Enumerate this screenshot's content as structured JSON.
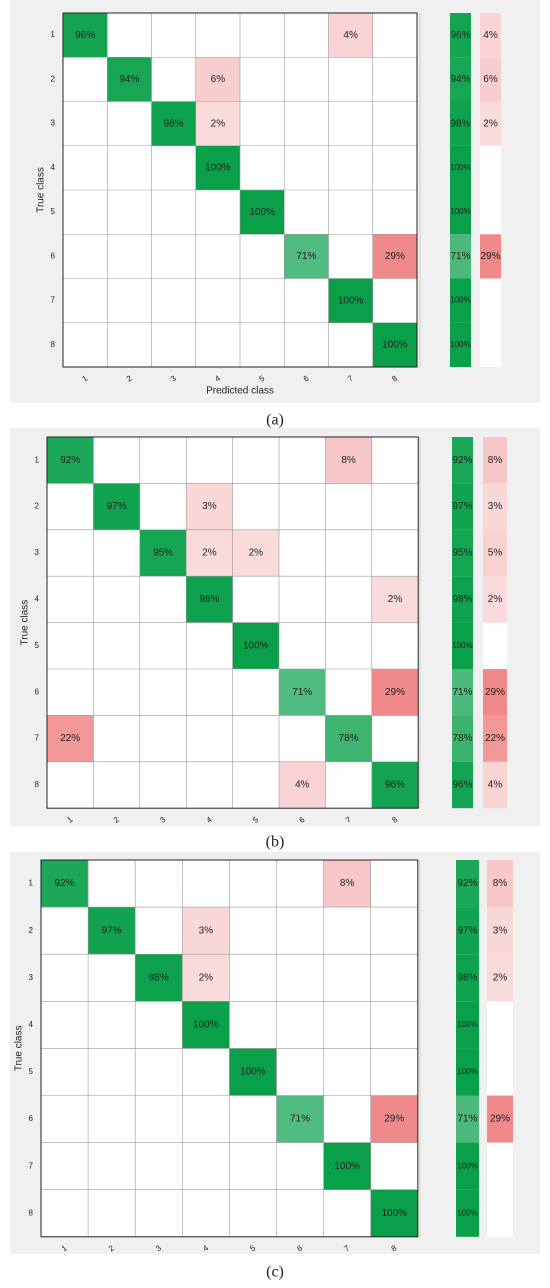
{
  "chart_data": [
    {
      "type": "heatmap",
      "caption": "(a)",
      "y_label": "True class",
      "x_label": "Predicted class",
      "classes": [
        "1",
        "2",
        "3",
        "4",
        "5",
        "6",
        "7",
        "8"
      ],
      "colors": {
        "correct": "#0aa04a",
        "error": "#f08a8a"
      },
      "values": [
        [
          96,
          null,
          null,
          null,
          null,
          null,
          4,
          null
        ],
        [
          null,
          94,
          null,
          6,
          null,
          null,
          null,
          null
        ],
        [
          null,
          null,
          98,
          2,
          null,
          null,
          null,
          null
        ],
        [
          null,
          null,
          null,
          100,
          null,
          null,
          null,
          null
        ],
        [
          null,
          null,
          null,
          null,
          100,
          null,
          null,
          null
        ],
        [
          null,
          null,
          null,
          null,
          null,
          71,
          null,
          29
        ],
        [
          null,
          null,
          null,
          null,
          null,
          null,
          100,
          null
        ],
        [
          null,
          null,
          null,
          null,
          null,
          null,
          null,
          100
        ]
      ],
      "value_labels": [
        [
          "96%",
          null,
          null,
          null,
          null,
          null,
          "4%",
          null
        ],
        [
          null,
          "94%",
          null,
          "6%",
          null,
          null,
          null,
          null
        ],
        [
          null,
          null,
          "98%",
          "2%",
          null,
          null,
          null,
          null
        ],
        [
          null,
          null,
          null,
          "100%",
          null,
          null,
          null,
          null
        ],
        [
          null,
          null,
          null,
          null,
          "100%",
          null,
          null,
          null
        ],
        [
          null,
          null,
          null,
          null,
          null,
          "71%",
          null,
          "29%"
        ],
        [
          null,
          null,
          null,
          null,
          null,
          null,
          "100%",
          null
        ],
        [
          null,
          null,
          null,
          null,
          null,
          null,
          null,
          "100%"
        ]
      ],
      "correct": [
        96,
        94,
        98,
        100,
        100,
        71,
        100,
        100
      ],
      "correct_labels": [
        "96%",
        "94%",
        "98%",
        "100%",
        "100%",
        "71%",
        "100%",
        "100%"
      ],
      "error": [
        4,
        6,
        2,
        null,
        null,
        29,
        null,
        null
      ],
      "error_labels": [
        "4%",
        "6%",
        "2%",
        null,
        null,
        "29%",
        null,
        null
      ]
    },
    {
      "type": "heatmap",
      "caption": "(b)",
      "y_label": "True class",
      "classes": [
        "1",
        "2",
        "3",
        "4",
        "5",
        "6",
        "7",
        "8"
      ],
      "colors": {
        "correct": "#0aa04a",
        "error": "#f08a8a"
      },
      "values": [
        [
          92,
          null,
          null,
          null,
          null,
          null,
          8,
          null
        ],
        [
          null,
          97,
          null,
          3,
          null,
          null,
          null,
          null
        ],
        [
          null,
          null,
          95,
          2,
          2,
          null,
          null,
          null
        ],
        [
          null,
          null,
          null,
          98,
          null,
          null,
          null,
          2
        ],
        [
          null,
          null,
          null,
          null,
          100,
          null,
          null,
          null
        ],
        [
          null,
          null,
          null,
          null,
          null,
          71,
          null,
          29
        ],
        [
          22,
          null,
          null,
          null,
          null,
          null,
          78,
          null
        ],
        [
          null,
          null,
          null,
          null,
          null,
          4,
          null,
          96
        ]
      ],
      "value_labels": [
        [
          "92%",
          null,
          null,
          null,
          null,
          null,
          "8%",
          null
        ],
        [
          null,
          "97%",
          null,
          "3%",
          null,
          null,
          null,
          null
        ],
        [
          null,
          null,
          "95%",
          "2%",
          "2%",
          null,
          null,
          null
        ],
        [
          null,
          null,
          null,
          "98%",
          null,
          null,
          null,
          "2%"
        ],
        [
          null,
          null,
          null,
          null,
          "100%",
          null,
          null,
          null
        ],
        [
          null,
          null,
          null,
          null,
          null,
          "71%",
          null,
          "29%"
        ],
        [
          "22%",
          null,
          null,
          null,
          null,
          null,
          "78%",
          null
        ],
        [
          null,
          null,
          null,
          null,
          null,
          "4%",
          null,
          "96%"
        ]
      ],
      "correct": [
        92,
        97,
        95,
        98,
        100,
        71,
        78,
        96
      ],
      "correct_labels": [
        "92%",
        "97%",
        "95%",
        "98%",
        "100%",
        "71%",
        "78%",
        "96%"
      ],
      "error": [
        8,
        3,
        5,
        2,
        null,
        29,
        22,
        4
      ],
      "error_labels": [
        "8%",
        "3%",
        "5%",
        "2%",
        null,
        "29%",
        "22%",
        "4%"
      ]
    },
    {
      "type": "heatmap",
      "caption": "(c)",
      "y_label": "True class",
      "classes": [
        "1",
        "2",
        "3",
        "4",
        "5",
        "6",
        "7",
        "8"
      ],
      "colors": {
        "correct": "#0aa04a",
        "error": "#f08a8a"
      },
      "values": [
        [
          92,
          null,
          null,
          null,
          null,
          null,
          8,
          null
        ],
        [
          null,
          97,
          null,
          3,
          null,
          null,
          null,
          null
        ],
        [
          null,
          null,
          98,
          2,
          null,
          null,
          null,
          null
        ],
        [
          null,
          null,
          null,
          100,
          null,
          null,
          null,
          null
        ],
        [
          null,
          null,
          null,
          null,
          100,
          null,
          null,
          null
        ],
        [
          null,
          null,
          null,
          null,
          null,
          71,
          null,
          29
        ],
        [
          null,
          null,
          null,
          null,
          null,
          null,
          100,
          null
        ],
        [
          null,
          null,
          null,
          null,
          null,
          null,
          null,
          100
        ]
      ],
      "value_labels": [
        [
          "92%",
          null,
          null,
          null,
          null,
          null,
          "8%",
          null
        ],
        [
          null,
          "97%",
          null,
          "3%",
          null,
          null,
          null,
          null
        ],
        [
          null,
          null,
          "98%",
          "2%",
          null,
          null,
          null,
          null
        ],
        [
          null,
          null,
          null,
          "100%",
          null,
          null,
          null,
          null
        ],
        [
          null,
          null,
          null,
          null,
          "100%",
          null,
          null,
          null
        ],
        [
          null,
          null,
          null,
          null,
          null,
          "71%",
          null,
          "29%"
        ],
        [
          null,
          null,
          null,
          null,
          null,
          null,
          "100%",
          null
        ],
        [
          null,
          null,
          null,
          null,
          null,
          null,
          null,
          "100%"
        ]
      ],
      "correct": [
        92,
        97,
        98,
        100,
        100,
        71,
        100,
        100
      ],
      "correct_labels": [
        "92%",
        "97%",
        "98%",
        "100%",
        "100%",
        "71%",
        "100%",
        "100%"
      ],
      "error": [
        8,
        3,
        2,
        null,
        null,
        29,
        null,
        null
      ],
      "error_labels": [
        "8%",
        "3%",
        "2%",
        null,
        null,
        "29%",
        null,
        null
      ]
    }
  ]
}
